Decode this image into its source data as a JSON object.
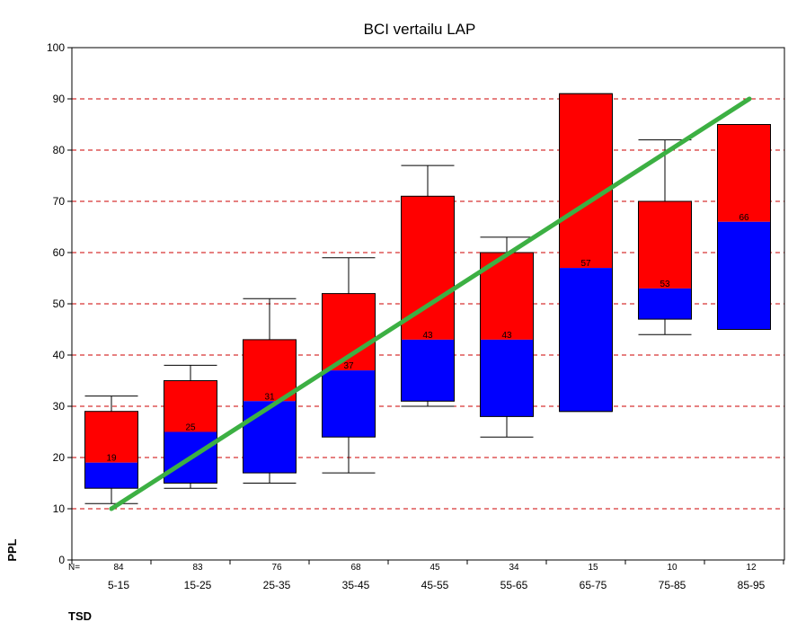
{
  "chart_data": {
    "type": "box",
    "title": "BCI vertailu LAP",
    "xlabel": "TSD",
    "ylabel": "PPL",
    "ylim": [
      0,
      100
    ],
    "yticks": [
      "0",
      "10",
      "20",
      "30",
      "40",
      "50",
      "60",
      "70",
      "80",
      "90",
      "100"
    ],
    "n_label": "N=",
    "grid": "horizontal dashed",
    "colors": {
      "upper": "#ff0000",
      "lower": "#0000ff",
      "trend": "#3cb043",
      "grid": "#cc0000"
    },
    "categories": [
      "5-15",
      "15-25",
      "25-35",
      "35-45",
      "45-55",
      "55-65",
      "65-75",
      "75-85",
      "85-95"
    ],
    "n": [
      "84",
      "83",
      "76",
      "68",
      "45",
      "34",
      "15",
      "10",
      "12"
    ],
    "boxes": [
      {
        "min": 11,
        "q1": 14,
        "median": 19,
        "q3": 29,
        "max": 32,
        "median_label": "19"
      },
      {
        "min": 14,
        "q1": 15,
        "median": 25,
        "q3": 35,
        "max": 38,
        "median_label": "25"
      },
      {
        "min": 15,
        "q1": 17,
        "median": 31,
        "q3": 43,
        "max": 51,
        "median_label": "31"
      },
      {
        "min": 17,
        "q1": 24,
        "median": 37,
        "q3": 52,
        "max": 59,
        "median_label": "37"
      },
      {
        "min": 30,
        "q1": 31,
        "median": 43,
        "q3": 71,
        "max": 77,
        "median_label": "43"
      },
      {
        "min": 24,
        "q1": 28,
        "median": 43,
        "q3": 60,
        "max": 63,
        "median_label": "43"
      },
      {
        "min": 29,
        "q1": 29,
        "median": 57,
        "q3": 91,
        "max": 91,
        "median_label": "57"
      },
      {
        "min": 44,
        "q1": 47,
        "median": 53,
        "q3": 70,
        "max": 82,
        "median_label": "53"
      },
      {
        "min": 45,
        "q1": 45,
        "median": 66,
        "q3": 85,
        "max": 85,
        "median_label": "66"
      }
    ],
    "trend_line": {
      "from": {
        "category": "5-15",
        "y": 10
      },
      "to": {
        "category": "85-95",
        "y": 90
      }
    }
  }
}
